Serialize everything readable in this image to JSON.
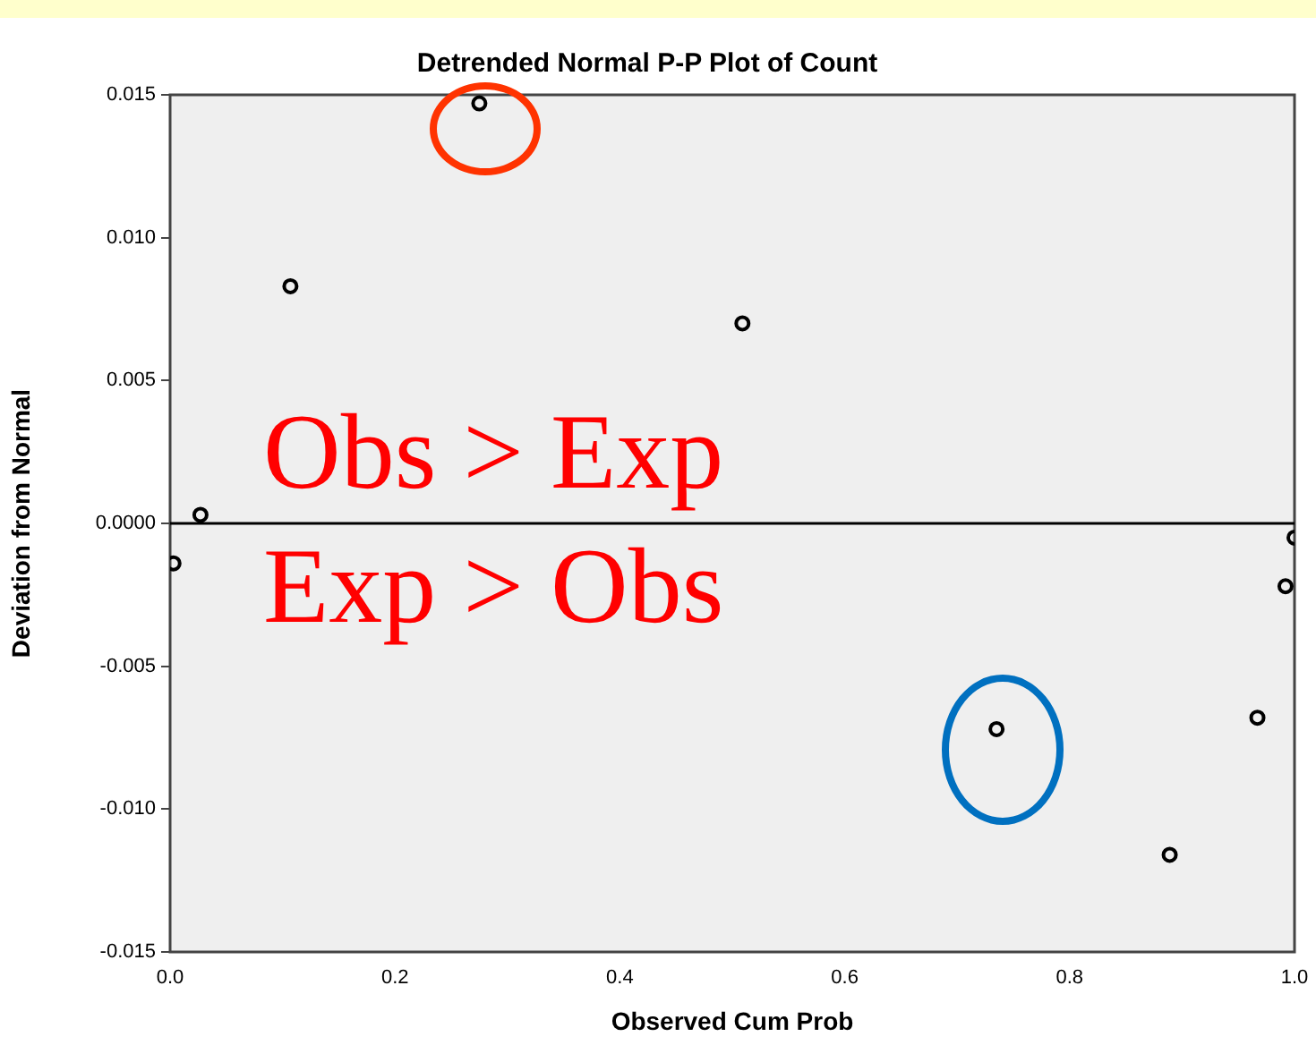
{
  "chart_data": {
    "type": "scatter",
    "title": "Detrended Normal P-P Plot of Count",
    "xlabel": "Observed Cum Prob",
    "ylabel": "Deviation from Normal",
    "x": [
      0.003,
      0.027,
      0.107,
      0.275,
      0.509,
      0.735,
      0.889,
      0.967,
      0.992,
      1.0
    ],
    "series": [
      {
        "color": "#000000",
        "values": [
          -0.0014,
          0.0003,
          0.0083,
          0.0147,
          0.007,
          -0.0072,
          -0.0116,
          -0.0068,
          -0.0022,
          -0.0005
        ]
      }
    ],
    "xlim": [
      0,
      1
    ],
    "xticks": [
      {
        "value": 0,
        "label": "0.0"
      },
      {
        "value": 0.2,
        "label": "0.2"
      },
      {
        "value": 0.4,
        "label": "0.4"
      },
      {
        "value": 0.6,
        "label": "0.6"
      },
      {
        "value": 0.8,
        "label": "0.8"
      },
      {
        "value": 1,
        "label": "1.0"
      }
    ],
    "ylim": [
      -0.015,
      0.015
    ],
    "yticks": [
      {
        "value": -0.015,
        "label": "-0.015"
      },
      {
        "value": -0.01,
        "label": "-0.010"
      },
      {
        "value": -0.005,
        "label": "-0.005"
      },
      {
        "value": 0,
        "label": "0.0000"
      },
      {
        "value": 0.005,
        "label": "0.005"
      },
      {
        "value": 0.01,
        "label": "0.010"
      },
      {
        "value": 0.015,
        "label": "0.015"
      }
    ],
    "ref_lines": [
      {
        "axis": "y",
        "value": 0,
        "color": "#000000"
      }
    ],
    "annotations": [
      "Obs > Exp",
      "Exp > Obs"
    ],
    "marker": "circle",
    "grid": false,
    "legend": false
  }
}
